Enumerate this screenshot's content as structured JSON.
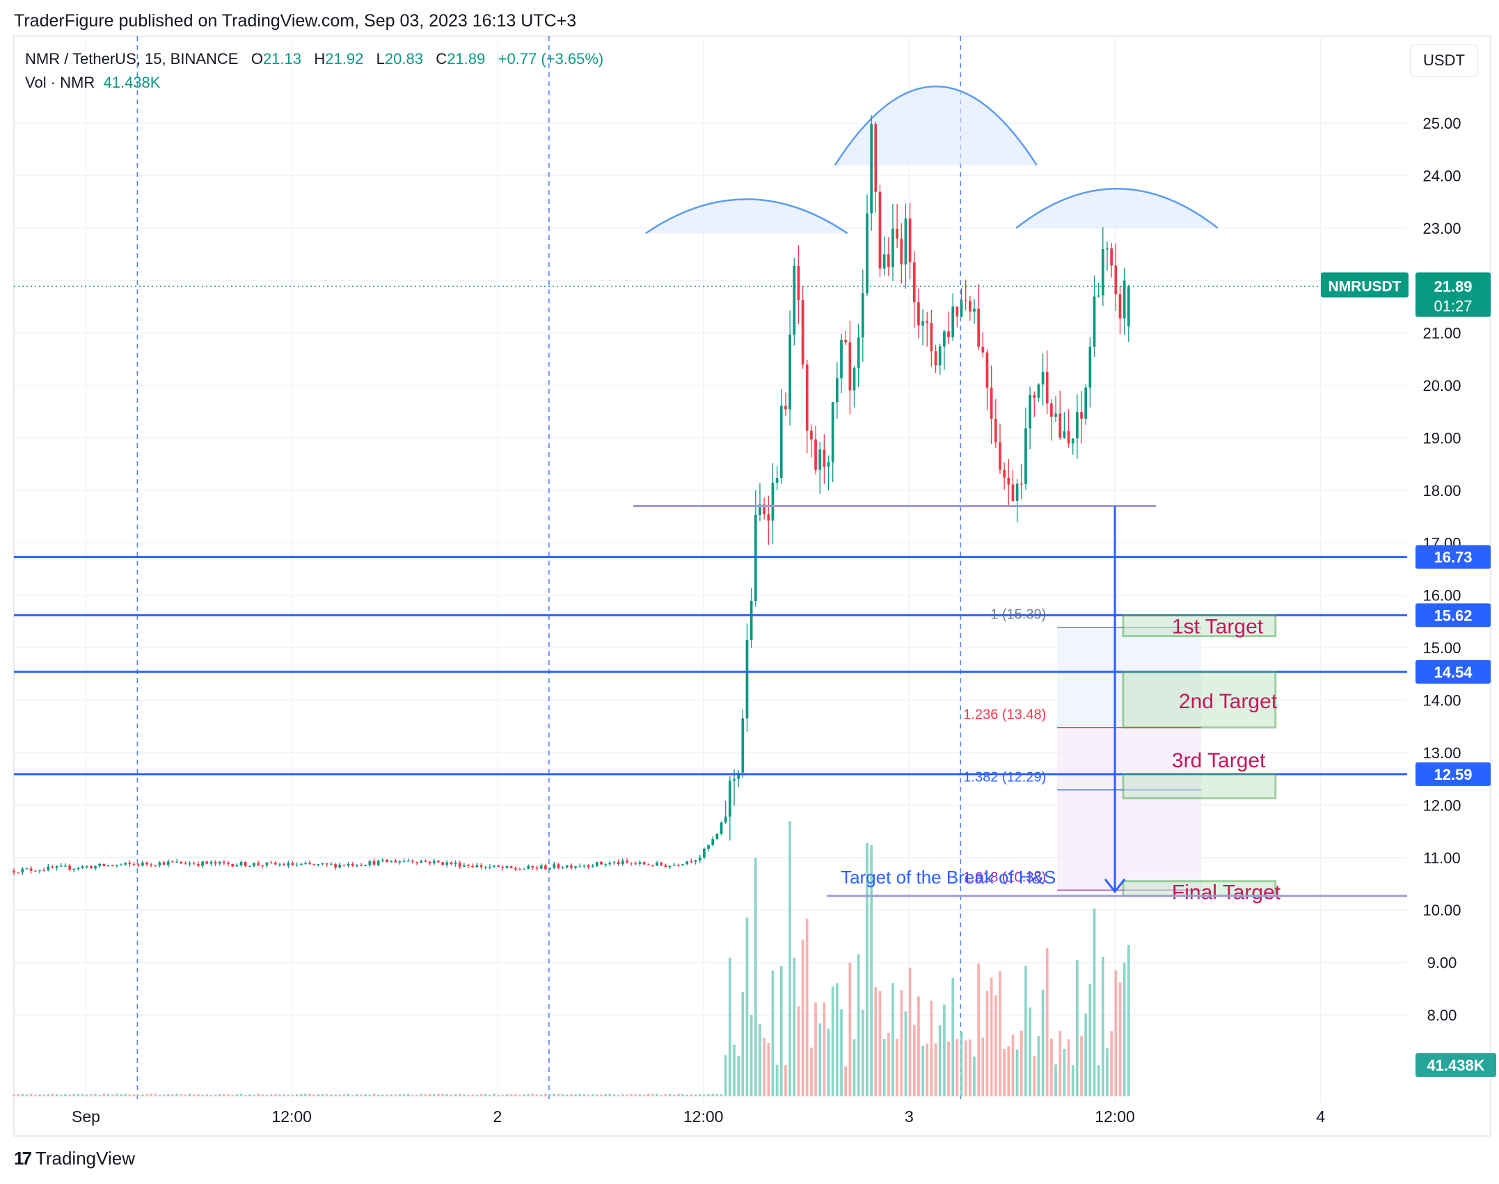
{
  "header": {
    "publisher": "TraderFigure published on TradingView.com, Sep 03, 2023 16:13 UTC+3",
    "symbol": "NMR / TetherUS, 15, BINANCE",
    "o_label": "O",
    "o_value": "21.13",
    "h_label": "H",
    "h_value": "21.92",
    "l_label": "L",
    "l_value": "20.83",
    "c_label": "C",
    "c_value": "21.89",
    "change": "+0.77 (+3.65%)",
    "vol_label": "Vol · NMR",
    "vol_value": "41.438K",
    "currency_button": "USDT"
  },
  "footer": {
    "logo": "17",
    "brand": "TradingView"
  },
  "chart_data": {
    "type": "candlestick",
    "symbol": "NMRUSDT",
    "timeframe": "15",
    "ylim": [
      6.8,
      26.5
    ],
    "y_ticks": [
      "25.00",
      "24.00",
      "23.00",
      "22.00",
      "21.00",
      "20.00",
      "19.00",
      "18.00",
      "17.00",
      "16.00",
      "15.00",
      "14.00",
      "13.00",
      "12.00",
      "11.00",
      "10.00",
      "9.00",
      "8.00"
    ],
    "x_ticks": [
      {
        "label": "Sep",
        "t": 0.4
      },
      {
        "label": "12:00",
        "t": 0.9
      },
      {
        "label": "2",
        "t": 1.4
      },
      {
        "label": "12:00",
        "t": 1.9
      },
      {
        "label": "3",
        "t": 2.4
      },
      {
        "label": "12:00",
        "t": 2.9
      },
      {
        "label": "4",
        "t": 3.4
      }
    ],
    "t_range": [
      0.225,
      3.61
    ],
    "candles_end_t": 3.0,
    "last_price": {
      "label": "NMRUSDT",
      "value": "21.89",
      "countdown": "01:27",
      "price": 21.89
    },
    "volume_last": "41.438K",
    "price_path": [
      [
        0.225,
        10.75
      ],
      [
        0.6,
        10.9
      ],
      [
        1.0,
        10.85
      ],
      [
        1.2,
        10.95
      ],
      [
        1.45,
        10.78
      ],
      [
        1.7,
        10.9
      ],
      [
        1.83,
        10.85
      ],
      [
        1.9,
        11.0
      ],
      [
        1.95,
        11.5
      ],
      [
        2.0,
        13.0
      ],
      [
        2.04,
        17.5
      ],
      [
        2.08,
        18.0
      ],
      [
        2.12,
        20.5
      ],
      [
        2.135,
        22.6
      ],
      [
        2.16,
        18.8
      ],
      [
        2.19,
        18.4
      ],
      [
        2.22,
        19.0
      ],
      [
        2.25,
        20.8
      ],
      [
        2.27,
        19.5
      ],
      [
        2.3,
        21.5
      ],
      [
        2.32,
        25.0
      ],
      [
        2.34,
        22.3
      ],
      [
        2.38,
        22.7
      ],
      [
        2.41,
        22.8
      ],
      [
        2.44,
        21.0
      ],
      [
        2.48,
        20.6
      ],
      [
        2.52,
        21.5
      ],
      [
        2.56,
        21.8
      ],
      [
        2.58,
        21.0
      ],
      [
        2.62,
        19.2
      ],
      [
        2.65,
        17.9
      ],
      [
        2.68,
        18.4
      ],
      [
        2.72,
        20.2
      ],
      [
        2.75,
        20.0
      ],
      [
        2.79,
        18.7
      ],
      [
        2.83,
        19.3
      ],
      [
        2.86,
        21.5
      ],
      [
        2.88,
        22.7
      ],
      [
        2.9,
        22.1
      ],
      [
        2.91,
        21.3
      ],
      [
        2.94,
        21.89
      ]
    ],
    "horizontal_levels": [
      {
        "price": 16.73,
        "label": "16.73",
        "color": "#2962ff"
      },
      {
        "price": 15.62,
        "label": "15.62",
        "color": "#2962ff"
      },
      {
        "price": 14.54,
        "label": "14.54",
        "color": "#2962ff"
      },
      {
        "price": 12.59,
        "label": "12.59",
        "color": "#2962ff"
      }
    ],
    "neckline": {
      "price": 17.7,
      "t_from": 1.73,
      "t_to": 3.0,
      "color": "#9c9cd6"
    },
    "target_line": {
      "price": 10.27,
      "t_from": 2.2,
      "t_to": 3.61,
      "color": "#9c9cd6"
    },
    "target_arrow": {
      "t": 2.9,
      "from_price": 17.7,
      "to_price": 10.35,
      "label": "Target of the Break of H&S",
      "color": "#2962ff"
    },
    "fib_levels": [
      {
        "ratio_label": "1 (15.39)",
        "price": 15.39,
        "color": "#787b86"
      },
      {
        "ratio_label": "1.236 (13.48)",
        "price": 13.48,
        "color": "#f23645"
      },
      {
        "ratio_label": "1.382 (12.29)",
        "price": 12.29,
        "color": "#2962ff"
      },
      {
        "ratio_label": "1.618 (10.38)",
        "price": 10.38,
        "color": "#9c27b0"
      }
    ],
    "target_boxes": [
      {
        "label": "1st Target",
        "p_top": 15.62,
        "p_bot": 15.22
      },
      {
        "label": "2nd Target",
        "p_top": 14.54,
        "p_bot": 13.48
      },
      {
        "label": "3rd Target",
        "p_top": 12.59,
        "p_bot": 12.13
      },
      {
        "label": "Final Target",
        "p_top": 10.55,
        "p_bot": 10.27
      }
    ],
    "arcs": [
      {
        "name": "left-shoulder",
        "t_from": 1.76,
        "t_to": 2.25,
        "base_price": 22.9,
        "peak_price": 23.55
      },
      {
        "name": "head",
        "t_from": 2.22,
        "t_to": 2.71,
        "base_price": 24.2,
        "peak_price": 25.7
      },
      {
        "name": "right-shoulder",
        "t_from": 2.66,
        "t_to": 3.15,
        "base_price": 23.0,
        "peak_price": 23.75
      }
    ],
    "session_lines_t": [
      0.525,
      1.525,
      2.525
    ],
    "dotted_price_line": 21.89
  }
}
